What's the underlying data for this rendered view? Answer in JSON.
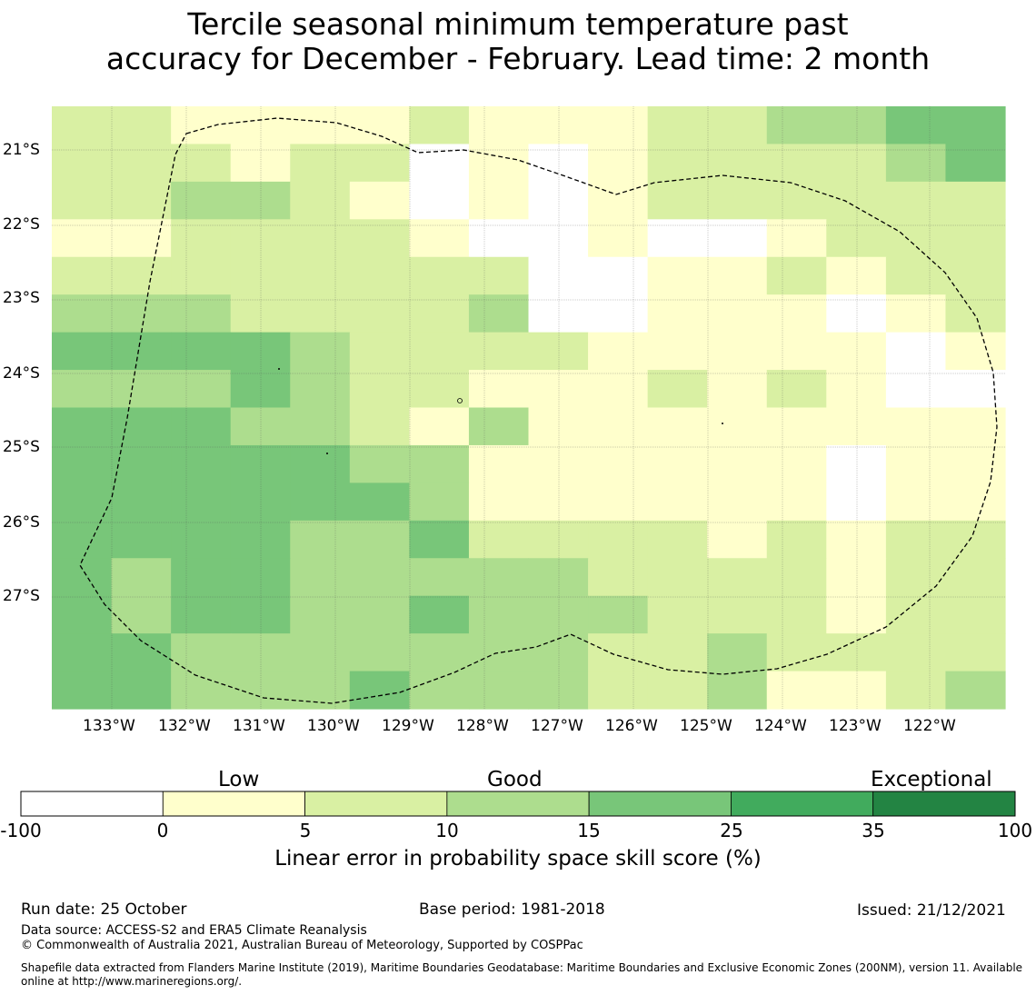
{
  "title_line1": "Tercile seasonal minimum temperature past",
  "title_line2": "accuracy for December - February. Lead time: 2 month",
  "map": {
    "lat_labels": [
      "21°S",
      "22°S",
      "23°S",
      "24°S",
      "25°S",
      "26°S",
      "27°S"
    ],
    "lon_labels": [
      "133°W",
      "132°W",
      "131°W",
      "130°W",
      "129°W",
      "128°W",
      "127°W",
      "126°W",
      "125°W",
      "124°W",
      "123°W",
      "122°W"
    ],
    "color_classes": {
      "0": "#ffffff",
      "1": "#ffffcc",
      "2": "#d9f0a3",
      "3": "#addd8e",
      "4": "#78c679",
      "5": "#41ab5d",
      "6": "#238443"
    },
    "cell_classes_note": "class index per grid cell, rows north to south; 0:<0, 1:0-5, 2:5-10, 3:10-15, 4:15-25, 5:25-35, 6:35-100",
    "cell_classes": [
      [
        2,
        2,
        1,
        1,
        1,
        1,
        2,
        1,
        1,
        1,
        2,
        2,
        3,
        3,
        4,
        4
      ],
      [
        2,
        2,
        2,
        1,
        2,
        2,
        0,
        1,
        0,
        1,
        2,
        2,
        2,
        2,
        3,
        4
      ],
      [
        2,
        2,
        3,
        3,
        2,
        1,
        0,
        1,
        0,
        1,
        2,
        2,
        2,
        2,
        2,
        2
      ],
      [
        1,
        1,
        2,
        2,
        2,
        2,
        1,
        0,
        0,
        1,
        0,
        0,
        1,
        2,
        2,
        2
      ],
      [
        2,
        2,
        2,
        2,
        2,
        2,
        2,
        2,
        0,
        0,
        1,
        1,
        2,
        1,
        2,
        2
      ],
      [
        3,
        3,
        3,
        2,
        2,
        2,
        2,
        3,
        0,
        0,
        1,
        1,
        1,
        0,
        1,
        2
      ],
      [
        4,
        4,
        4,
        4,
        3,
        2,
        2,
        2,
        2,
        1,
        1,
        1,
        1,
        1,
        0,
        1
      ],
      [
        3,
        3,
        3,
        4,
        3,
        2,
        2,
        1,
        1,
        1,
        2,
        1,
        2,
        1,
        0,
        0
      ],
      [
        4,
        4,
        4,
        3,
        3,
        2,
        1,
        3,
        1,
        1,
        1,
        1,
        1,
        1,
        1,
        1
      ],
      [
        4,
        4,
        4,
        4,
        4,
        3,
        3,
        1,
        1,
        1,
        1,
        1,
        1,
        0,
        1,
        1
      ],
      [
        4,
        4,
        4,
        4,
        4,
        4,
        3,
        1,
        1,
        1,
        1,
        1,
        1,
        0,
        1,
        1
      ],
      [
        4,
        4,
        4,
        4,
        3,
        3,
        4,
        2,
        2,
        2,
        2,
        1,
        2,
        1,
        2,
        2
      ],
      [
        4,
        3,
        4,
        4,
        3,
        3,
        3,
        3,
        3,
        2,
        2,
        2,
        2,
        1,
        2,
        2
      ],
      [
        4,
        3,
        4,
        4,
        3,
        3,
        4,
        3,
        3,
        3,
        2,
        2,
        2,
        1,
        2,
        2
      ],
      [
        4,
        4,
        3,
        3,
        3,
        3,
        3,
        3,
        3,
        2,
        2,
        3,
        2,
        2,
        2,
        2
      ],
      [
        4,
        4,
        3,
        3,
        3,
        4,
        3,
        3,
        3,
        2,
        2,
        3,
        1,
        1,
        2,
        3
      ]
    ]
  },
  "colorbar": {
    "category_labels": [
      "Low",
      "Good",
      "Exceptional"
    ],
    "tick_labels": [
      "-100",
      "0",
      "5",
      "10",
      "15",
      "25",
      "35",
      "100"
    ],
    "colors": [
      "#ffffff",
      "#ffffcc",
      "#d9f0a3",
      "#addd8e",
      "#78c679",
      "#41ab5d",
      "#238443"
    ],
    "axis_label": "Linear error in probability space skill score (%)"
  },
  "footer": {
    "run_date": "Run date: 25 October",
    "base_period": "Base period: 1981-2018",
    "issued": "Issued: 21/12/2021",
    "data_source": "Data source: ACCESS-S2 and ERA5 Climate Reanalysis",
    "copyright": "© Commonwealth of Australia 2021, Australian Bureau of Meteorology, Supported by COSPPac",
    "shapefile_line1": "Shapefile data extracted from Flanders Marine Institute (2019), Maritime Boundaries Geodatabase: Maritime Boundaries and Exclusive Economic Zones (200NM), version 11. Available",
    "shapefile_line2": "online at http://www.marineregions.org/."
  }
}
